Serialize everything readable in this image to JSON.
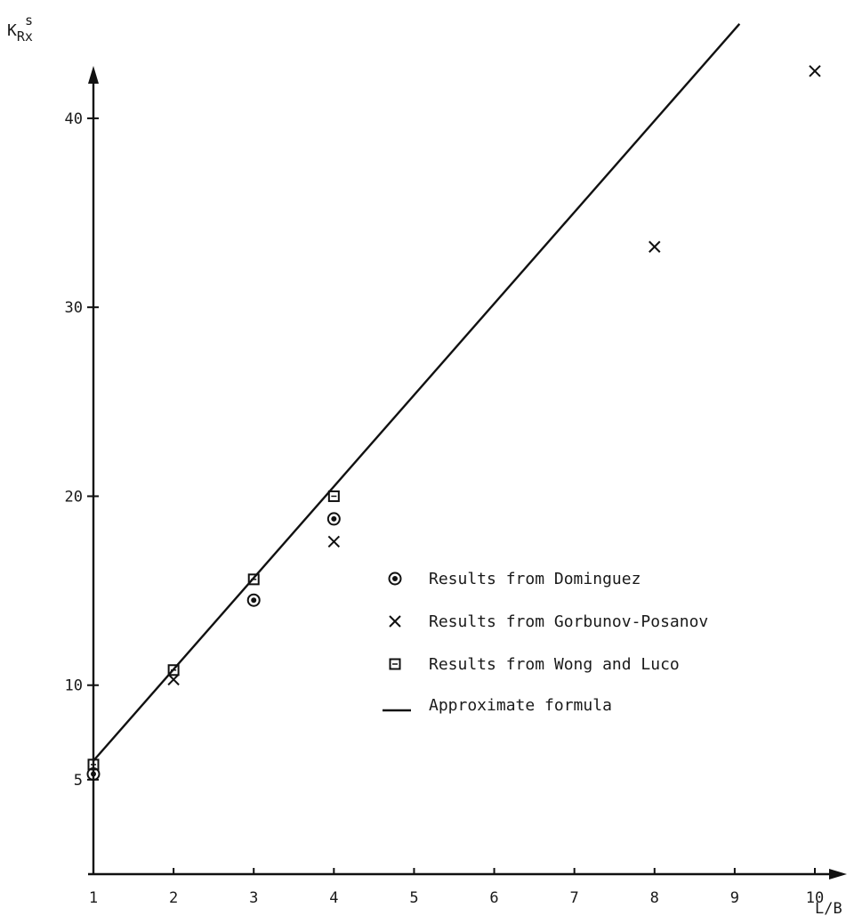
{
  "chart_data": {
    "type": "scatter",
    "title": "",
    "xlabel": "L/B",
    "ylabel_main": "K",
    "ylabel_sup": "s",
    "ylabel_sub": "Rx",
    "xlim": [
      1,
      10
    ],
    "ylim": [
      0,
      44
    ],
    "x_ticks": [
      1,
      2,
      3,
      4,
      5,
      6,
      7,
      8,
      9,
      10
    ],
    "x_tick_labels": [
      "1",
      "2",
      "3",
      "4",
      "5",
      "6",
      "7",
      "8",
      "9",
      "10"
    ],
    "y_ticks": [
      5,
      10,
      20,
      30,
      40
    ],
    "y_tick_labels": [
      "5",
      "10",
      "20",
      "30",
      "40"
    ],
    "grid": false,
    "legend_position": "center-right",
    "series": [
      {
        "name": "Results from Dominguez",
        "marker": "circle-dot",
        "points": [
          {
            "x": 1,
            "y": 5.3
          },
          {
            "x": 3,
            "y": 14.5
          },
          {
            "x": 4,
            "y": 18.8
          }
        ]
      },
      {
        "name": "Results from Gorbunov-Posanov",
        "marker": "x",
        "points": [
          {
            "x": 2,
            "y": 10.3
          },
          {
            "x": 4,
            "y": 17.6
          },
          {
            "x": 8,
            "y": 33.2
          },
          {
            "x": 10,
            "y": 42.5
          }
        ]
      },
      {
        "name": "Results from Wong and Luco",
        "marker": "square-dot",
        "points": [
          {
            "x": 1,
            "y": 5.8
          },
          {
            "x": 2,
            "y": 10.8
          },
          {
            "x": 3,
            "y": 15.6
          },
          {
            "x": 4,
            "y": 20
          }
        ]
      }
    ],
    "lines": [
      {
        "name": "Approximate formula",
        "points": [
          {
            "x": 1,
            "y": 6
          },
          {
            "x": 9.06,
            "y": 45
          }
        ]
      }
    ]
  }
}
